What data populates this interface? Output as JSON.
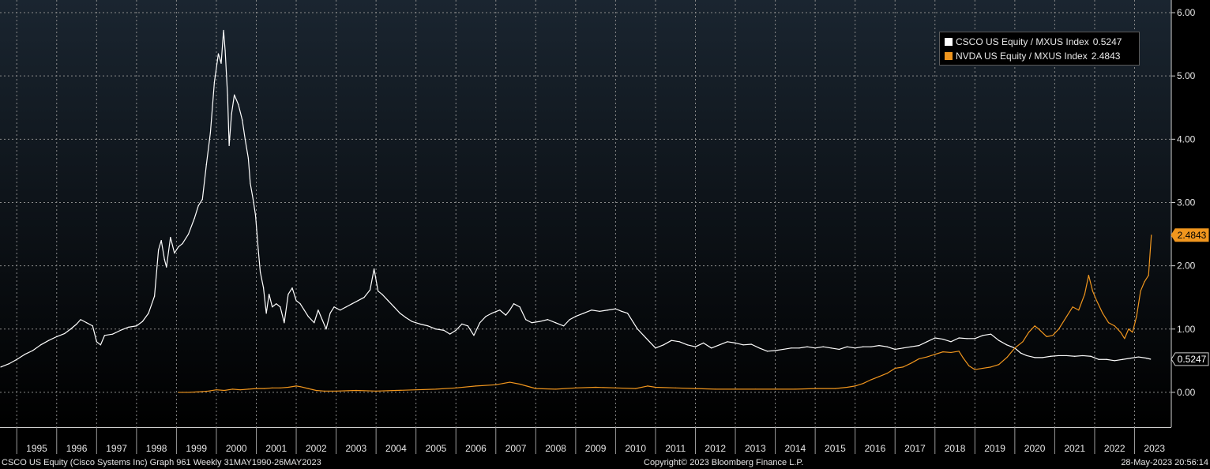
{
  "chart_data": {
    "type": "line",
    "ylim": [
      -0.55,
      6.2
    ],
    "xlim": [
      1994.58,
      2023.92
    ],
    "grid": true,
    "legend_position": "top-right",
    "y_ticks": [
      "0.00",
      "1.00",
      "2.00",
      "3.00",
      "4.00",
      "5.00",
      "6.00"
    ],
    "x_ticks": [
      "1995",
      "1996",
      "1997",
      "1998",
      "1999",
      "2000",
      "2001",
      "2002",
      "2003",
      "2004",
      "2005",
      "2006",
      "2007",
      "2008",
      "2009",
      "2010",
      "2011",
      "2012",
      "2013",
      "2014",
      "2015",
      "2016",
      "2017",
      "2018",
      "2019",
      "2020",
      "2021",
      "2022",
      "2023"
    ],
    "series": [
      {
        "name": "CSCO US Equity / MXUS Index",
        "last_value": "0.5247",
        "color": "#ffffff",
        "points": [
          [
            1994.6,
            0.4
          ],
          [
            1994.8,
            0.45
          ],
          [
            1995.0,
            0.52
          ],
          [
            1995.2,
            0.6
          ],
          [
            1995.4,
            0.66
          ],
          [
            1995.6,
            0.75
          ],
          [
            1995.8,
            0.82
          ],
          [
            1996.0,
            0.88
          ],
          [
            1996.2,
            0.93
          ],
          [
            1996.35,
            1.0
          ],
          [
            1996.5,
            1.08
          ],
          [
            1996.6,
            1.15
          ],
          [
            1996.75,
            1.1
          ],
          [
            1996.9,
            1.05
          ],
          [
            1997.0,
            0.8
          ],
          [
            1997.1,
            0.75
          ],
          [
            1997.2,
            0.9
          ],
          [
            1997.4,
            0.92
          ],
          [
            1997.6,
            0.98
          ],
          [
            1997.8,
            1.03
          ],
          [
            1998.0,
            1.05
          ],
          [
            1998.15,
            1.12
          ],
          [
            1998.3,
            1.25
          ],
          [
            1998.45,
            1.52
          ],
          [
            1998.55,
            2.25
          ],
          [
            1998.62,
            2.4
          ],
          [
            1998.7,
            2.1
          ],
          [
            1998.75,
            1.98
          ],
          [
            1998.85,
            2.45
          ],
          [
            1998.95,
            2.2
          ],
          [
            1999.05,
            2.3
          ],
          [
            1999.15,
            2.35
          ],
          [
            1999.3,
            2.5
          ],
          [
            1999.45,
            2.75
          ],
          [
            1999.55,
            2.95
          ],
          [
            1999.65,
            3.05
          ],
          [
            1999.75,
            3.6
          ],
          [
            1999.85,
            4.1
          ],
          [
            1999.95,
            4.9
          ],
          [
            2000.05,
            5.35
          ],
          [
            2000.12,
            5.2
          ],
          [
            2000.18,
            5.72
          ],
          [
            2000.22,
            5.4
          ],
          [
            2000.28,
            4.7
          ],
          [
            2000.32,
            3.9
          ],
          [
            2000.38,
            4.4
          ],
          [
            2000.45,
            4.7
          ],
          [
            2000.55,
            4.55
          ],
          [
            2000.65,
            4.3
          ],
          [
            2000.72,
            4.0
          ],
          [
            2000.8,
            3.7
          ],
          [
            2000.85,
            3.3
          ],
          [
            2000.92,
            3.05
          ],
          [
            2000.98,
            2.8
          ],
          [
            2001.05,
            2.25
          ],
          [
            2001.1,
            1.9
          ],
          [
            2001.18,
            1.65
          ],
          [
            2001.25,
            1.25
          ],
          [
            2001.32,
            1.55
          ],
          [
            2001.4,
            1.35
          ],
          [
            2001.5,
            1.4
          ],
          [
            2001.6,
            1.35
          ],
          [
            2001.7,
            1.1
          ],
          [
            2001.8,
            1.55
          ],
          [
            2001.9,
            1.65
          ],
          [
            2002.0,
            1.45
          ],
          [
            2002.1,
            1.4
          ],
          [
            2002.2,
            1.3
          ],
          [
            2002.3,
            1.2
          ],
          [
            2002.45,
            1.1
          ],
          [
            2002.55,
            1.3
          ],
          [
            2002.65,
            1.15
          ],
          [
            2002.75,
            1.0
          ],
          [
            2002.85,
            1.25
          ],
          [
            2002.95,
            1.35
          ],
          [
            2003.1,
            1.3
          ],
          [
            2003.25,
            1.35
          ],
          [
            2003.4,
            1.4
          ],
          [
            2003.55,
            1.45
          ],
          [
            2003.7,
            1.5
          ],
          [
            2003.85,
            1.62
          ],
          [
            2003.95,
            1.95
          ],
          [
            2004.05,
            1.6
          ],
          [
            2004.15,
            1.55
          ],
          [
            2004.3,
            1.45
          ],
          [
            2004.45,
            1.35
          ],
          [
            2004.6,
            1.25
          ],
          [
            2004.75,
            1.18
          ],
          [
            2004.9,
            1.12
          ],
          [
            2005.1,
            1.08
          ],
          [
            2005.3,
            1.05
          ],
          [
            2005.5,
            1.0
          ],
          [
            2005.7,
            0.98
          ],
          [
            2005.85,
            0.92
          ],
          [
            2006.0,
            0.98
          ],
          [
            2006.15,
            1.08
          ],
          [
            2006.3,
            1.05
          ],
          [
            2006.45,
            0.9
          ],
          [
            2006.6,
            1.1
          ],
          [
            2006.75,
            1.2
          ],
          [
            2006.9,
            1.25
          ],
          [
            2007.1,
            1.3
          ],
          [
            2007.25,
            1.22
          ],
          [
            2007.35,
            1.3
          ],
          [
            2007.45,
            1.4
          ],
          [
            2007.6,
            1.35
          ],
          [
            2007.75,
            1.15
          ],
          [
            2007.9,
            1.1
          ],
          [
            2008.1,
            1.12
          ],
          [
            2008.3,
            1.15
          ],
          [
            2008.5,
            1.1
          ],
          [
            2008.7,
            1.05
          ],
          [
            2008.85,
            1.15
          ],
          [
            2009.0,
            1.2
          ],
          [
            2009.2,
            1.25
          ],
          [
            2009.4,
            1.3
          ],
          [
            2009.6,
            1.28
          ],
          [
            2009.8,
            1.3
          ],
          [
            2010.0,
            1.32
          ],
          [
            2010.15,
            1.28
          ],
          [
            2010.3,
            1.25
          ],
          [
            2010.45,
            1.1
          ],
          [
            2010.55,
            1.0
          ],
          [
            2010.7,
            0.9
          ],
          [
            2010.85,
            0.8
          ],
          [
            2011.0,
            0.7
          ],
          [
            2011.2,
            0.75
          ],
          [
            2011.4,
            0.82
          ],
          [
            2011.6,
            0.8
          ],
          [
            2011.8,
            0.75
          ],
          [
            2012.0,
            0.72
          ],
          [
            2012.2,
            0.78
          ],
          [
            2012.4,
            0.7
          ],
          [
            2012.6,
            0.75
          ],
          [
            2012.8,
            0.8
          ],
          [
            2013.0,
            0.78
          ],
          [
            2013.2,
            0.75
          ],
          [
            2013.4,
            0.76
          ],
          [
            2013.6,
            0.7
          ],
          [
            2013.8,
            0.65
          ],
          [
            2014.0,
            0.66
          ],
          [
            2014.2,
            0.68
          ],
          [
            2014.4,
            0.7
          ],
          [
            2014.6,
            0.7
          ],
          [
            2014.8,
            0.72
          ],
          [
            2015.0,
            0.7
          ],
          [
            2015.2,
            0.72
          ],
          [
            2015.4,
            0.7
          ],
          [
            2015.6,
            0.68
          ],
          [
            2015.8,
            0.72
          ],
          [
            2016.0,
            0.7
          ],
          [
            2016.2,
            0.72
          ],
          [
            2016.4,
            0.72
          ],
          [
            2016.6,
            0.74
          ],
          [
            2016.8,
            0.72
          ],
          [
            2017.0,
            0.68
          ],
          [
            2017.2,
            0.7
          ],
          [
            2017.4,
            0.72
          ],
          [
            2017.6,
            0.74
          ],
          [
            2017.8,
            0.8
          ],
          [
            2018.0,
            0.86
          ],
          [
            2018.2,
            0.84
          ],
          [
            2018.4,
            0.8
          ],
          [
            2018.6,
            0.86
          ],
          [
            2018.8,
            0.85
          ],
          [
            2019.0,
            0.85
          ],
          [
            2019.2,
            0.9
          ],
          [
            2019.4,
            0.92
          ],
          [
            2019.6,
            0.82
          ],
          [
            2019.8,
            0.75
          ],
          [
            2020.0,
            0.7
          ],
          [
            2020.15,
            0.62
          ],
          [
            2020.3,
            0.58
          ],
          [
            2020.5,
            0.55
          ],
          [
            2020.7,
            0.55
          ],
          [
            2020.9,
            0.57
          ],
          [
            2021.1,
            0.58
          ],
          [
            2021.3,
            0.58
          ],
          [
            2021.5,
            0.57
          ],
          [
            2021.7,
            0.58
          ],
          [
            2021.9,
            0.57
          ],
          [
            2022.1,
            0.52
          ],
          [
            2022.3,
            0.52
          ],
          [
            2022.5,
            0.5
          ],
          [
            2022.7,
            0.52
          ],
          [
            2022.9,
            0.54
          ],
          [
            2023.1,
            0.56
          ],
          [
            2023.3,
            0.54
          ],
          [
            2023.4,
            0.5247
          ]
        ]
      },
      {
        "name": "NVDA US Equity / MXUS Index",
        "last_value": "2.4843",
        "color": "#f0961e",
        "points": [
          [
            1999.05,
            0.0
          ],
          [
            1999.3,
            0.0
          ],
          [
            1999.6,
            0.01
          ],
          [
            1999.8,
            0.02
          ],
          [
            2000.0,
            0.04
          ],
          [
            2000.2,
            0.03
          ],
          [
            2000.4,
            0.05
          ],
          [
            2000.6,
            0.04
          ],
          [
            2000.8,
            0.05
          ],
          [
            2001.0,
            0.06
          ],
          [
            2001.2,
            0.06
          ],
          [
            2001.4,
            0.07
          ],
          [
            2001.6,
            0.07
          ],
          [
            2001.8,
            0.08
          ],
          [
            2002.0,
            0.1
          ],
          [
            2002.1,
            0.09
          ],
          [
            2002.3,
            0.06
          ],
          [
            2002.5,
            0.03
          ],
          [
            2002.7,
            0.02
          ],
          [
            2003.0,
            0.02
          ],
          [
            2003.5,
            0.03
          ],
          [
            2004.0,
            0.02
          ],
          [
            2004.5,
            0.03
          ],
          [
            2005.0,
            0.04
          ],
          [
            2005.5,
            0.05
          ],
          [
            2006.0,
            0.07
          ],
          [
            2006.5,
            0.1
          ],
          [
            2007.0,
            0.12
          ],
          [
            2007.35,
            0.16
          ],
          [
            2007.6,
            0.13
          ],
          [
            2008.0,
            0.06
          ],
          [
            2008.5,
            0.05
          ],
          [
            2009.0,
            0.07
          ],
          [
            2009.5,
            0.08
          ],
          [
            2010.0,
            0.07
          ],
          [
            2010.5,
            0.06
          ],
          [
            2010.8,
            0.1
          ],
          [
            2011.0,
            0.08
          ],
          [
            2011.5,
            0.07
          ],
          [
            2012.0,
            0.06
          ],
          [
            2012.5,
            0.05
          ],
          [
            2013.0,
            0.05
          ],
          [
            2013.5,
            0.05
          ],
          [
            2014.0,
            0.05
          ],
          [
            2014.5,
            0.05
          ],
          [
            2015.0,
            0.06
          ],
          [
            2015.5,
            0.06
          ],
          [
            2015.8,
            0.08
          ],
          [
            2016.0,
            0.1
          ],
          [
            2016.2,
            0.14
          ],
          [
            2016.4,
            0.2
          ],
          [
            2016.6,
            0.25
          ],
          [
            2016.8,
            0.3
          ],
          [
            2017.0,
            0.38
          ],
          [
            2017.2,
            0.4
          ],
          [
            2017.4,
            0.46
          ],
          [
            2017.6,
            0.53
          ],
          [
            2017.8,
            0.56
          ],
          [
            2018.0,
            0.6
          ],
          [
            2018.2,
            0.64
          ],
          [
            2018.4,
            0.63
          ],
          [
            2018.6,
            0.65
          ],
          [
            2018.7,
            0.55
          ],
          [
            2018.85,
            0.42
          ],
          [
            2019.0,
            0.36
          ],
          [
            2019.2,
            0.38
          ],
          [
            2019.4,
            0.4
          ],
          [
            2019.6,
            0.44
          ],
          [
            2019.8,
            0.55
          ],
          [
            2020.0,
            0.7
          ],
          [
            2020.2,
            0.8
          ],
          [
            2020.35,
            0.95
          ],
          [
            2020.5,
            1.05
          ],
          [
            2020.6,
            1.0
          ],
          [
            2020.8,
            0.88
          ],
          [
            2020.95,
            0.9
          ],
          [
            2021.1,
            1.0
          ],
          [
            2021.3,
            1.2
          ],
          [
            2021.45,
            1.35
          ],
          [
            2021.6,
            1.3
          ],
          [
            2021.75,
            1.55
          ],
          [
            2021.85,
            1.85
          ],
          [
            2021.95,
            1.6
          ],
          [
            2022.05,
            1.45
          ],
          [
            2022.2,
            1.25
          ],
          [
            2022.35,
            1.1
          ],
          [
            2022.5,
            1.05
          ],
          [
            2022.65,
            0.95
          ],
          [
            2022.75,
            0.85
          ],
          [
            2022.85,
            1.0
          ],
          [
            2022.95,
            0.95
          ],
          [
            2023.05,
            1.2
          ],
          [
            2023.15,
            1.6
          ],
          [
            2023.25,
            1.75
          ],
          [
            2023.35,
            1.85
          ],
          [
            2023.42,
            2.4843
          ]
        ]
      }
    ]
  },
  "footer": {
    "left": "CSCO US Equity (Cisco Systems Inc) Graph 961  Weekly 31MAY1990-26MAY2023",
    "center": "Copyright© 2023 Bloomberg Finance L.P.",
    "right": "28-May-2023 20:56:14"
  },
  "colors": {
    "background_top": "#1a2530",
    "background_bottom": "#000000",
    "grid": "#8a8a8a",
    "csco_line": "#ffffff",
    "nvda_line": "#f0961e"
  }
}
